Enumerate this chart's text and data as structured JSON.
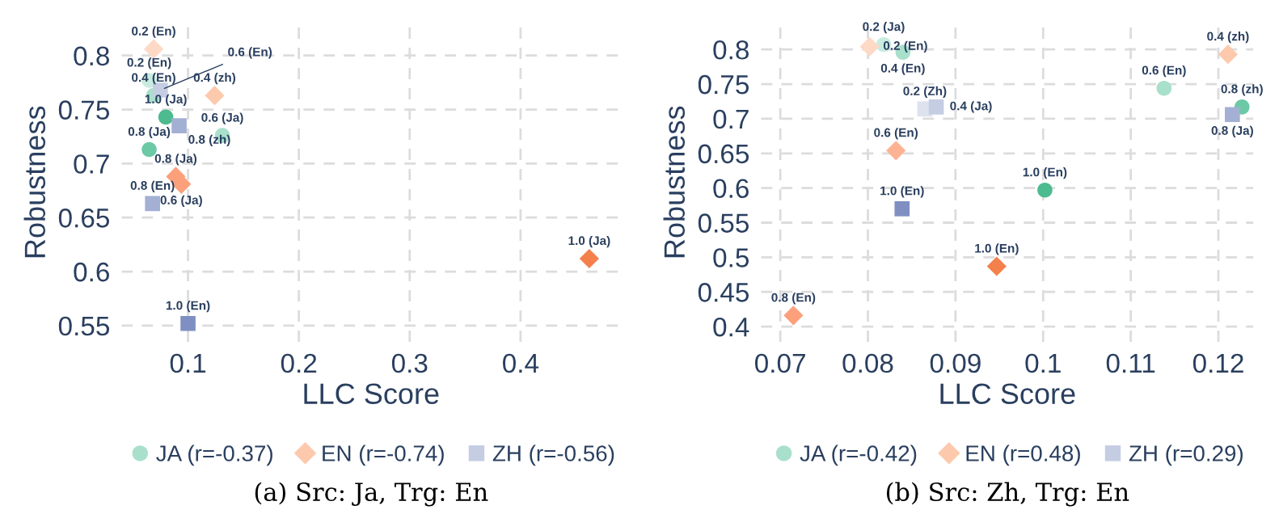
{
  "chart_data": [
    {
      "type": "scatter",
      "xlabel": "LLC Score",
      "ylabel": "Robustness",
      "xlim": [
        0.04,
        0.49
      ],
      "ylim": [
        0.535,
        0.83
      ],
      "xticks": [
        0.1,
        0.2,
        0.3,
        0.4
      ],
      "yticks": [
        0.55,
        0.6,
        0.65,
        0.7,
        0.75,
        0.8
      ],
      "grid": true,
      "legend": "bottom",
      "series": [
        {
          "name": "JA (r=-0.37)",
          "marker": "circle",
          "color": "#a8e0cc",
          "x": [
            0.065,
            0.069,
            0.08,
            0.065,
            0.131
          ],
          "values": [
            0.777,
            0.763,
            0.743,
            0.713,
            0.726
          ],
          "colors": [
            "#c9ece0",
            "#a8e0cc",
            "#4dbb8f",
            "#6cc9a5",
            "#a8e0cc"
          ]
        },
        {
          "name": "EN (r=-0.74)",
          "marker": "diamond",
          "color": "#fdc9ad",
          "x": [
            0.069,
            0.124,
            0.089,
            0.094,
            0.462
          ],
          "values": [
            0.806,
            0.763,
            0.688,
            0.681,
            0.612
          ],
          "colors": [
            "#fdd9c6",
            "#fdc9ad",
            "#fca07c",
            "#fca07c",
            "#f4804c"
          ]
        },
        {
          "name": "ZH (r=-0.56)",
          "marker": "square",
          "color": "#c5cde3",
          "x": [
            0.075,
            0.092,
            0.068,
            0.1
          ],
          "values": [
            0.768,
            0.735,
            0.663,
            0.552
          ],
          "colors": [
            "#c5cde3",
            "#a3b0d4",
            "#a3b0d4",
            "#7f8fc2"
          ]
        }
      ],
      "annotations": [
        {
          "text": "0.2 (En)",
          "x": 0.069,
          "y": 0.806
        },
        {
          "text": "0.2 (En)",
          "x": 0.065,
          "y": 0.777
        },
        {
          "text": "0.4 (En)",
          "x": 0.069,
          "y": 0.763
        },
        {
          "text": "1.0 (Ja)",
          "x": 0.08,
          "y": 0.743
        },
        {
          "text": "0.8 (Ja)",
          "x": 0.065,
          "y": 0.713
        },
        {
          "text": "0.6 (Ja)",
          "x": 0.131,
          "y": 0.726
        },
        {
          "text": "0.4 (zh)",
          "x": 0.124,
          "y": 0.763
        },
        {
          "text": "0.8 (Ja)",
          "x": 0.089,
          "y": 0.688
        },
        {
          "text": "0.6 (Ja)",
          "x": 0.094,
          "y": 0.681
        },
        {
          "text": "1.0 (Ja)",
          "x": 0.462,
          "y": 0.612
        },
        {
          "text": "0.6 (En)",
          "x": 0.075,
          "y": 0.768
        },
        {
          "text": "0.8 (zh)",
          "x": 0.092,
          "y": 0.735
        },
        {
          "text": "0.8 (En)",
          "x": 0.068,
          "y": 0.663
        },
        {
          "text": "1.0 (En)",
          "x": 0.1,
          "y": 0.552
        },
        "(a) Src: Ja, Trg: En"
      ]
    },
    {
      "type": "scatter",
      "xlabel": "LLC Score",
      "ylabel": "Robustness",
      "xlim": [
        0.0678,
        0.124
      ],
      "ylim": [
        0.378,
        0.838
      ],
      "xticks": [
        0.07,
        0.08,
        0.09,
        {
          "value": 0.1,
          "label": "0.1"
        },
        0.11,
        0.12
      ],
      "yticks": [
        0.4,
        0.45,
        {
          "value": 0.5,
          "label": "0.5"
        },
        0.55,
        {
          "value": 0.6,
          "label": "0.6"
        },
        0.65,
        {
          "value": 0.7,
          "label": "0.7"
        },
        0.75,
        {
          "value": 0.8,
          "label": "0.8"
        }
      ],
      "grid": true,
      "legend": "bottom",
      "series": [
        {
          "name": "JA (r=-0.42)",
          "marker": "circle",
          "color": "#a8e0cc",
          "x": [
            0.0818,
            0.084,
            0.1138,
            0.1227,
            0.1002
          ],
          "values": [
            0.807,
            0.796,
            0.744,
            0.717,
            0.597
          ],
          "colors": [
            "#c9ece0",
            "#a8e0cc",
            "#a8e0cc",
            "#6cc9a5",
            "#4dbb8f"
          ]
        },
        {
          "name": "EN (r=0.48)",
          "marker": "diamond",
          "color": "#fdc9ad",
          "x": [
            0.0802,
            0.1211,
            0.0832,
            0.0715,
            0.0947
          ],
          "values": [
            0.804,
            0.793,
            0.654,
            0.416,
            0.487
          ],
          "colors": [
            "#fdd9c6",
            "#fdc9ad",
            "#fdb393",
            "#fca07c",
            "#f4804c"
          ]
        },
        {
          "name": "ZH (r=0.29)",
          "marker": "square",
          "color": "#c5cde3",
          "x": [
            0.0865,
            0.0878,
            0.1216,
            0.0839
          ],
          "values": [
            0.714,
            0.717,
            0.706,
            0.57
          ],
          "colors": [
            "#dde2ee",
            "#c5cde3",
            "#a3b0d4",
            "#7f8fc2"
          ]
        }
      ],
      "annotations": [
        {
          "text": "0.2 (Ja)",
          "x": 0.0818,
          "y": 0.807
        },
        {
          "text": "0.4 (En)",
          "x": 0.084,
          "y": 0.796
        },
        {
          "text": "0.6 (En)",
          "x": 0.1138,
          "y": 0.744
        },
        {
          "text": "0.8 (zh)",
          "x": 0.1227,
          "y": 0.717
        },
        {
          "text": "1.0 (En)",
          "x": 0.1002,
          "y": 0.597
        },
        {
          "text": "0.2 (En)",
          "x": 0.0802,
          "y": 0.804
        },
        {
          "text": "0.4 (zh)",
          "x": 0.1211,
          "y": 0.793
        },
        {
          "text": "0.6 (En)",
          "x": 0.0832,
          "y": 0.654
        },
        {
          "text": "0.8 (En)",
          "x": 0.0715,
          "y": 0.416
        },
        {
          "text": "1.0 (En)",
          "x": 0.0947,
          "y": 0.487
        },
        {
          "text": "0.2 (Zh)",
          "x": 0.0865,
          "y": 0.714
        },
        {
          "text": "0.4 (Ja)",
          "x": 0.0878,
          "y": 0.717
        },
        {
          "text": "0.8 (Ja)",
          "x": 0.1216,
          "y": 0.706
        },
        {
          "text": "1.0 (En)",
          "x": 0.0839,
          "y": 0.57
        },
        "(b) Src: Zh, Trg: En"
      ]
    }
  ]
}
